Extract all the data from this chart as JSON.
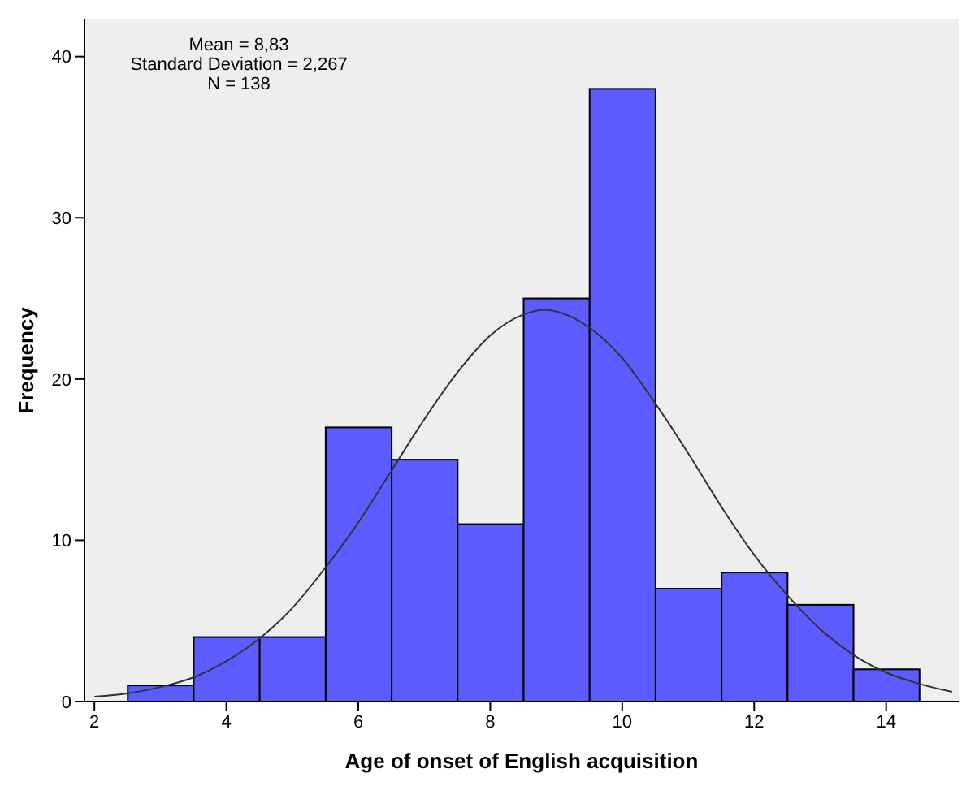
{
  "chart_data": {
    "type": "histogram",
    "xlabel": "Age of onset of English acquisition",
    "ylabel": "Frequency",
    "bins": [
      2.5,
      3.5,
      4.5,
      5.5,
      6.5,
      7.5,
      8.5,
      9.5,
      10.5,
      11.5,
      12.5,
      13.5,
      14.5
    ],
    "values": [
      1,
      4,
      4,
      17,
      15,
      11,
      25,
      38,
      7,
      8,
      6,
      2
    ],
    "color": "#5b5bff",
    "series": [
      {
        "type": "line",
        "color": "#333333",
        "x": [
          2,
          2.5,
          3,
          3.5,
          4,
          4.5,
          5,
          5.5,
          6,
          6.5,
          7,
          7.5,
          8,
          8.5,
          8.83,
          9,
          9.5,
          10,
          10.5,
          11,
          11.5,
          12,
          12.5,
          13,
          13.5,
          14,
          14.5,
          15
        ],
        "values": [
          0.3,
          0.5,
          0.9,
          1.5,
          2.5,
          3.9,
          5.8,
          8.3,
          11.1,
          14.3,
          17.5,
          20.4,
          22.7,
          24.0,
          24.3,
          24.2,
          23.2,
          21.3,
          18.5,
          15.4,
          12.1,
          9.1,
          6.6,
          4.5,
          2.9,
          1.8,
          1.1,
          0.6
        ]
      }
    ],
    "xlim": [
      1.85,
      15.1
    ],
    "xticks": [
      2,
      4,
      6,
      8,
      10,
      12,
      14
    ],
    "ylim": [
      0,
      42.3
    ],
    "yticks": [
      0,
      10,
      20,
      30,
      40
    ],
    "grid": false,
    "annotations": [
      "Mean = 8,83",
      "Standard Deviation = 2,267",
      "N = 138"
    ]
  }
}
